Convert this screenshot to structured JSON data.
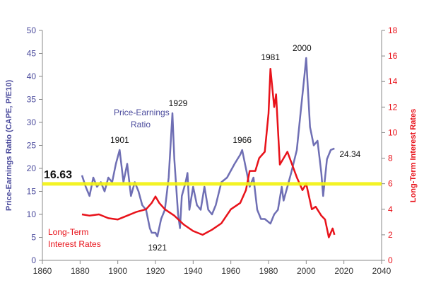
{
  "chart_data": {
    "type": "line",
    "title": "",
    "xlabel": "",
    "xlim": [
      1860,
      2040
    ],
    "x_ticks": [
      "1860",
      "1880",
      "1900",
      "1920",
      "1940",
      "1960",
      "1980",
      "2000",
      "2020",
      "2040"
    ],
    "ylabel_left": "Price-Earnings Ratio (CAPE, P/E10)",
    "ylim_left": [
      0,
      50
    ],
    "y_ticks_left": [
      "0",
      "5",
      "10",
      "15",
      "20",
      "25",
      "30",
      "35",
      "40",
      "45",
      "50"
    ],
    "ylabel_right": "Long-Term Interest Rates",
    "ylim_right": [
      0,
      18
    ],
    "y_ticks_right": [
      "0",
      "2",
      "4",
      "6",
      "8",
      "10",
      "12",
      "14",
      "16",
      "18"
    ],
    "colors": {
      "pe": "#6f6fb4",
      "rates": "#e8121a",
      "mean_line": "#f2f20e",
      "left_axis": "#4a4a9c",
      "right_axis": "#e8121a"
    },
    "series": [
      {
        "name": "Price-Earnings Ratio",
        "label_lines": [
          "Price-Earnings",
          "Ratio"
        ],
        "axis": "left",
        "x": [
          1881,
          1883,
          1885,
          1887,
          1889,
          1891,
          1893,
          1895,
          1897,
          1899,
          1901,
          1903,
          1905,
          1907,
          1909,
          1911,
          1913,
          1915,
          1917,
          1918,
          1920,
          1921,
          1923,
          1925,
          1927,
          1929,
          1930,
          1932,
          1933,
          1934,
          1936,
          1937,
          1938,
          1940,
          1942,
          1944,
          1946,
          1948,
          1950,
          1952,
          1955,
          1958,
          1962,
          1965,
          1966,
          1968,
          1970,
          1972,
          1974,
          1976,
          1978,
          1981,
          1983,
          1985,
          1987,
          1988,
          1990,
          1992,
          1995,
          1997,
          1999,
          2000,
          2002,
          2004,
          2006,
          2008,
          2009,
          2011,
          2013,
          2015
        ],
        "y": [
          18.5,
          16,
          14,
          18,
          16,
          17,
          15,
          18,
          17,
          21,
          24,
          17,
          21,
          14,
          17,
          15,
          12,
          11,
          7,
          6,
          6,
          5.2,
          9,
          11,
          18,
          32,
          22,
          10,
          7,
          14,
          17,
          19,
          11,
          16,
          12,
          11,
          16,
          11,
          10,
          12,
          17,
          18,
          21,
          23,
          24,
          20,
          16,
          18,
          11,
          9,
          9,
          8,
          10,
          11,
          16,
          13,
          16,
          19,
          24,
          32,
          40,
          44,
          29,
          25,
          26,
          19,
          14,
          22,
          24,
          24.34
        ]
      },
      {
        "name": "Long-Term Interest Rates",
        "label_lines": [
          "Long-Term",
          "Interest Rates"
        ],
        "axis": "right",
        "x": [
          1881,
          1885,
          1890,
          1895,
          1900,
          1905,
          1910,
          1915,
          1918,
          1920,
          1922,
          1925,
          1930,
          1935,
          1940,
          1945,
          1950,
          1955,
          1960,
          1965,
          1968,
          1970,
          1973,
          1975,
          1978,
          1980,
          1981,
          1983,
          1984,
          1986,
          1990,
          1995,
          1998,
          2000,
          2003,
          2005,
          2008,
          2010,
          2012,
          2014,
          2015
        ],
        "y": [
          3.6,
          3.5,
          3.6,
          3.3,
          3.2,
          3.5,
          3.8,
          4,
          4.5,
          5,
          4.5,
          4,
          3.5,
          2.8,
          2.3,
          2,
          2.4,
          2.9,
          4,
          4.5,
          5.5,
          7,
          7,
          8,
          8.5,
          11.5,
          15,
          12,
          13,
          7.5,
          8.5,
          6.5,
          5.5,
          6,
          4,
          4.2,
          3.5,
          3.2,
          1.8,
          2.5,
          2
        ]
      }
    ],
    "reference_line": {
      "value": 16.63,
      "label": "16.63",
      "axis": "left"
    },
    "annotations": [
      {
        "text": "1901",
        "x": 1901,
        "y": 24
      },
      {
        "text": "1929",
        "x": 1929,
        "y": 32
      },
      {
        "text": "1921",
        "x": 1921,
        "y": 5.2
      },
      {
        "text": "1966",
        "x": 1966,
        "y": 24
      },
      {
        "text": "1981",
        "x": 1981,
        "y": 15,
        "axis": "right"
      },
      {
        "text": "2000",
        "x": 2000,
        "y": 44
      },
      {
        "text": "24.34",
        "x": 2015,
        "y": 24.34
      }
    ],
    "grid": false,
    "legend": "none"
  }
}
